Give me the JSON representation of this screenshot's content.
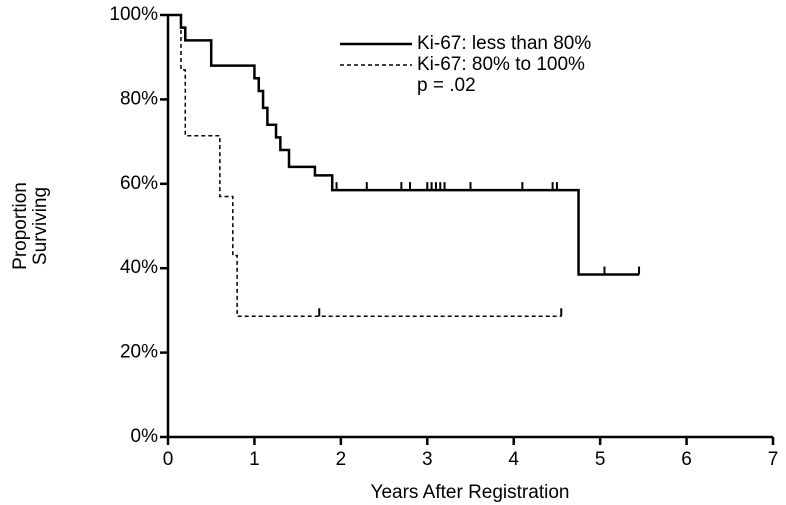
{
  "chart_data": {
    "type": "step",
    "xlabel": "Years After Registration",
    "ylabel": [
      "Proportion",
      "Surviving"
    ],
    "annotation": "p = .02",
    "xlim": [
      0,
      7
    ],
    "ylim": [
      0,
      100
    ],
    "xticks": [
      0,
      1,
      2,
      3,
      4,
      5,
      6,
      7
    ],
    "yticks": [
      {
        "value": 0,
        "label": "0%"
      },
      {
        "value": 20,
        "label": "20%"
      },
      {
        "value": 40,
        "label": "40%"
      },
      {
        "value": 60,
        "label": "60%"
      },
      {
        "value": 80,
        "label": "80%"
      },
      {
        "value": 100,
        "label": "100%"
      }
    ],
    "series": [
      {
        "name": "Ki-67: less than 80%",
        "color": "#000000",
        "dash": false,
        "x": [
          0,
          0.15,
          0.2,
          0.5,
          1.0,
          1.05,
          1.1,
          1.15,
          1.25,
          1.3,
          1.4,
          1.7,
          1.9,
          4.75,
          5.45
        ],
        "values": [
          100,
          97,
          94,
          88,
          85,
          82,
          78,
          74,
          71,
          68,
          64,
          62,
          58.5,
          38.5,
          38.5
        ],
        "censor_x": [
          1.95,
          2.3,
          2.7,
          2.8,
          3.0,
          3.05,
          3.1,
          3.15,
          3.2,
          3.5,
          4.1,
          4.45,
          4.5,
          5.05,
          5.45
        ],
        "censor_values": [
          58.5,
          58.5,
          58.5,
          58.5,
          58.5,
          58.5,
          58.5,
          58.5,
          58.5,
          58.5,
          58.5,
          58.5,
          58.5,
          38.5,
          38.5
        ]
      },
      {
        "name": "Ki-67: 80% to 100%",
        "color": "#000000",
        "dash": true,
        "x": [
          0,
          0.15,
          0.2,
          0.6,
          0.75,
          0.8,
          4.55
        ],
        "values": [
          100,
          87,
          71.4,
          57,
          43,
          28.6,
          28.6
        ],
        "censor_x": [
          1.75,
          4.55
        ],
        "censor_values": [
          28.6,
          28.6
        ]
      }
    ]
  }
}
